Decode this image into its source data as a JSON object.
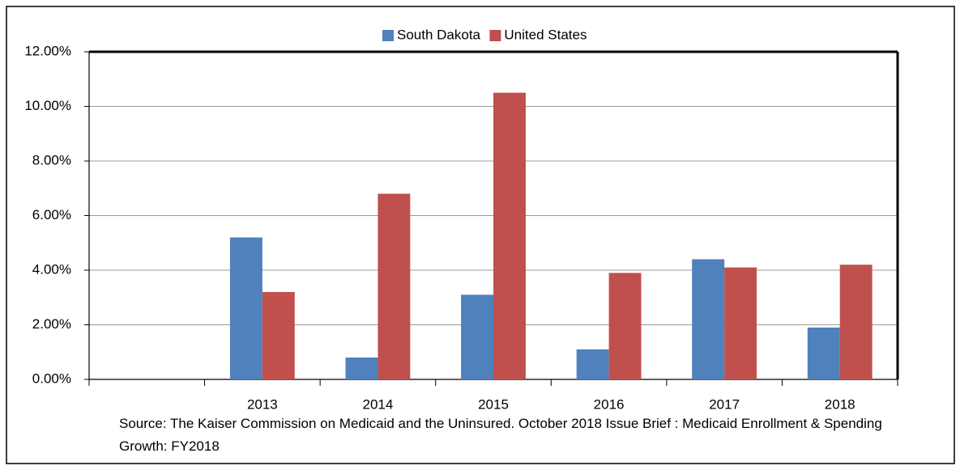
{
  "chart_data": {
    "type": "bar",
    "categories": [
      null,
      "2013",
      "2014",
      "2015",
      "2016",
      "2017",
      "2018"
    ],
    "series": [
      {
        "name": "South Dakota",
        "color": "#4f81bd",
        "values": [
          null,
          5.2,
          0.8,
          3.1,
          1.1,
          4.4,
          1.9
        ]
      },
      {
        "name": "United States",
        "color": "#c0504d",
        "values": [
          null,
          3.2,
          6.8,
          10.5,
          3.9,
          4.1,
          4.2
        ]
      }
    ],
    "ylim": [
      0,
      12
    ],
    "yticks": [
      {
        "value": 0,
        "label": "0.00%"
      },
      {
        "value": 2,
        "label": "2.00%"
      },
      {
        "value": 4,
        "label": "4.00%"
      },
      {
        "value": 6,
        "label": "6.00%"
      },
      {
        "value": 8,
        "label": "8.00%"
      },
      {
        "value": 10,
        "label": "10.00%"
      },
      {
        "value": 12,
        "label": "12.00%"
      }
    ],
    "grid": true,
    "legend": "top",
    "note": "Source: The Kaiser Commission on Medicaid and the Uninsured. October 2018 Issue Brief : Medicaid Enrollment & Spending Growth: FY2018"
  }
}
